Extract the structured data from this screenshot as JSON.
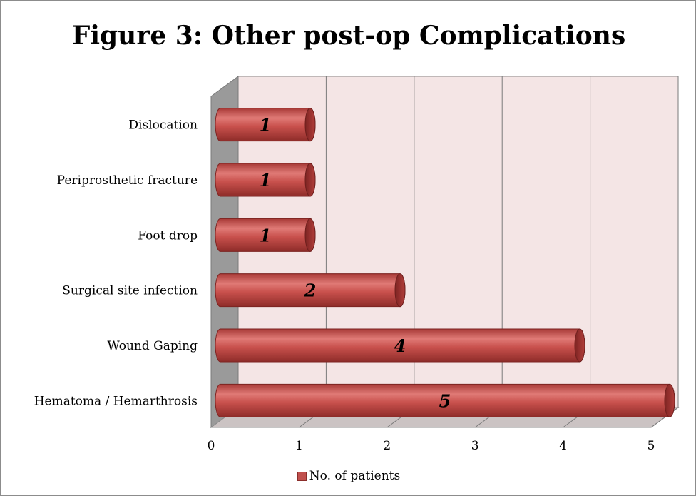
{
  "chart_data": {
    "type": "bar",
    "orientation": "horizontal",
    "title": "Figure 3: Other post-op Complications",
    "categories": [
      "Dislocation",
      "Periprosthetic fracture",
      "Foot drop",
      "Surgical site infection",
      "Wound Gaping",
      "Hematoma / Hemarthrosis"
    ],
    "series": [
      {
        "name": "No. of patients",
        "values": [
          1,
          1,
          1,
          2,
          4,
          5
        ],
        "color": "#c0504d"
      }
    ],
    "x_ticks": [
      "0",
      "1",
      "2",
      "3",
      "4",
      "5"
    ],
    "xlim": [
      0,
      5
    ],
    "grid": true,
    "legend_position": "bottom",
    "style": "3d-cylinder"
  }
}
